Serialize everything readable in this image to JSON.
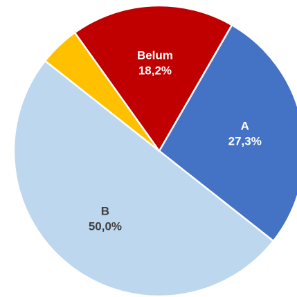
{
  "chart_data": {
    "type": "pie",
    "categories": [
      "A",
      "B",
      null,
      "Belum"
    ],
    "values": [
      27.3,
      50.0,
      4.5,
      18.2
    ],
    "value_labels": [
      "27,3%",
      "50,0%",
      null,
      "18,2%"
    ],
    "colors": [
      "#4472c4",
      "#bdd7ee",
      "#ffc000",
      "#c00000"
    ]
  }
}
